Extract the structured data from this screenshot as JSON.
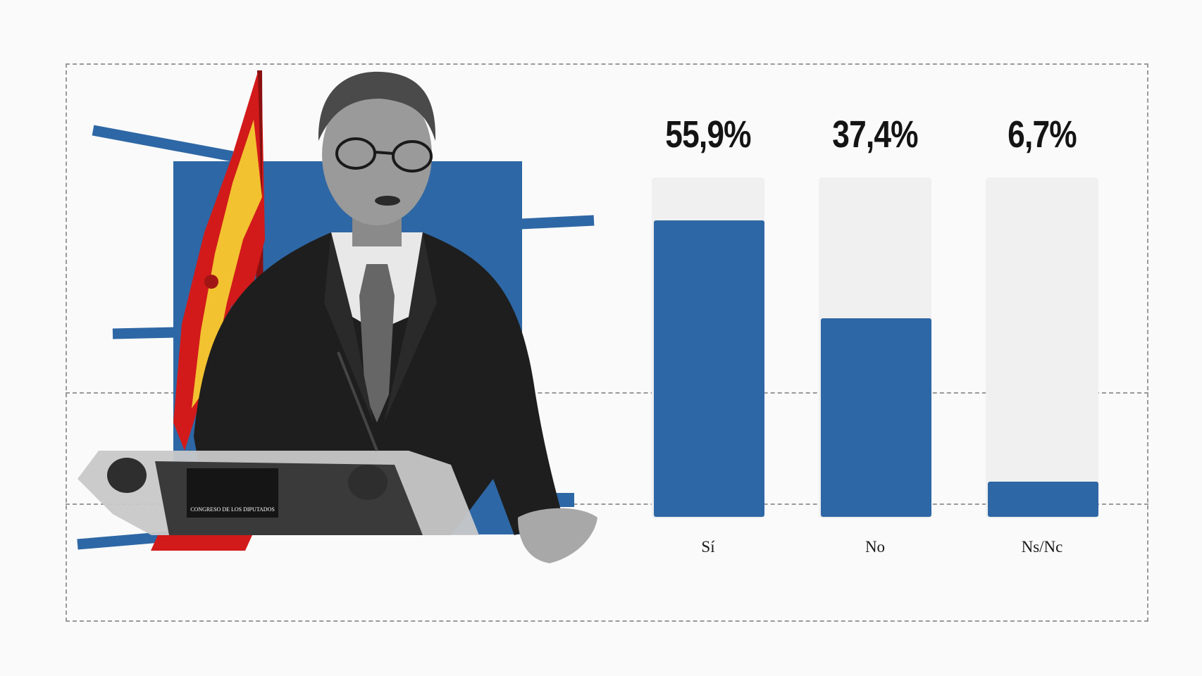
{
  "chart_data": {
    "type": "bar",
    "categories": [
      "Sí",
      "No",
      "Ns/Nc"
    ],
    "values": [
      55.9,
      37.4,
      6.7
    ],
    "value_labels": [
      "55,9%",
      "37,4%",
      "6,7%"
    ],
    "unit": "%",
    "ylim": [
      0,
      64
    ],
    "grid": false,
    "legend": "none",
    "colors": {
      "bar": "#2e67a5",
      "track": "#f0f0f0"
    }
  },
  "illustration": {
    "icon": "politician-at-podium-with-spanish-flag",
    "podium_text": "CONGRESO DE LOS DIPUTADOS",
    "colors": {
      "blue": "#2e67a5",
      "red": "#d21a1a",
      "yellow": "#f2c230"
    }
  }
}
